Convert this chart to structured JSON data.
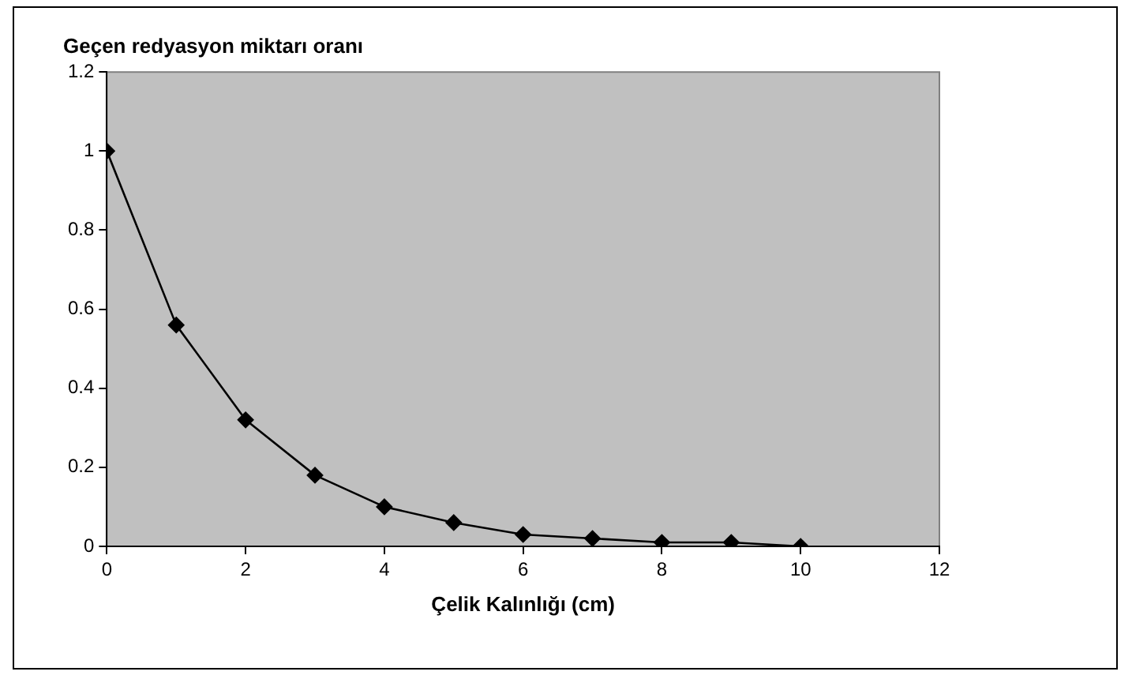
{
  "chart_data": {
    "type": "line",
    "title": "Geçen redyasyon miktarı oranı",
    "xlabel": "Çelik Kalınlığı (cm)",
    "x": [
      0,
      1,
      2,
      3,
      4,
      5,
      6,
      7,
      8,
      9,
      10
    ],
    "series": [
      {
        "color": "#000000",
        "values": [
          1,
          0.56,
          0.32,
          0.18,
          0.1,
          0.06,
          0.03,
          0.02,
          0.01,
          0.01,
          0.0
        ]
      }
    ],
    "xlim": [
      0,
      12
    ],
    "xticks": [
      0,
      2,
      4,
      6,
      8,
      10,
      12
    ],
    "ylim": [
      0,
      1.2
    ],
    "yticks": [
      0,
      0.2,
      0.4,
      0.6,
      0.8,
      1,
      1.2
    ],
    "grid": false,
    "legend": false,
    "marker": "diamond",
    "line_style": "solid"
  }
}
